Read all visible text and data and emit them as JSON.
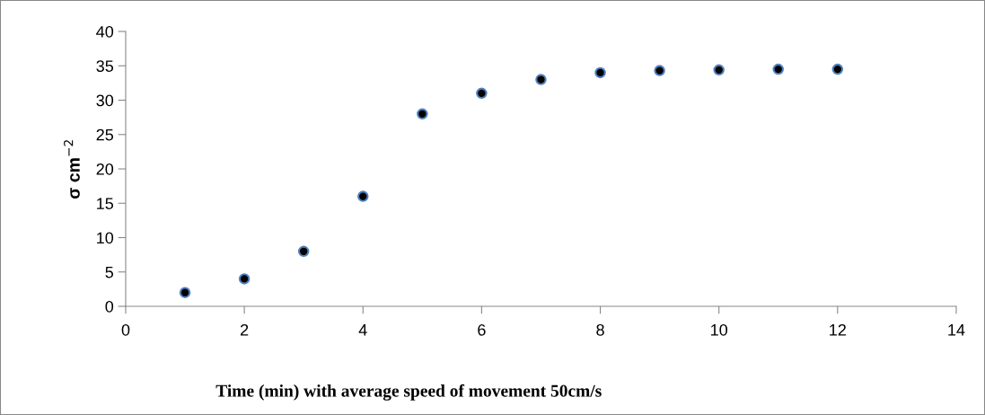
{
  "chart_data": {
    "type": "scatter",
    "xlabel": "Time (min) with average speed of movement 50cm/s",
    "ylabel": "σ cm$^{−2}$",
    "x": [
      1,
      2,
      3,
      4,
      5,
      6,
      7,
      8,
      9,
      10,
      11,
      12
    ],
    "series": [
      {
        "color": "#000000",
        "values": [
          2,
          4,
          8,
          16,
          28,
          31,
          33,
          34,
          34.3,
          34.4,
          34.5,
          34.5
        ]
      }
    ],
    "xlim": [
      0,
      14
    ],
    "xticks": [
      0,
      2,
      4,
      6,
      8,
      10,
      12,
      14
    ],
    "ylim": [
      0,
      40
    ],
    "yticks": [
      0,
      5,
      10,
      15,
      20,
      25,
      30,
      35,
      40
    ],
    "marker": "circle",
    "grid": false,
    "legend": false
  }
}
